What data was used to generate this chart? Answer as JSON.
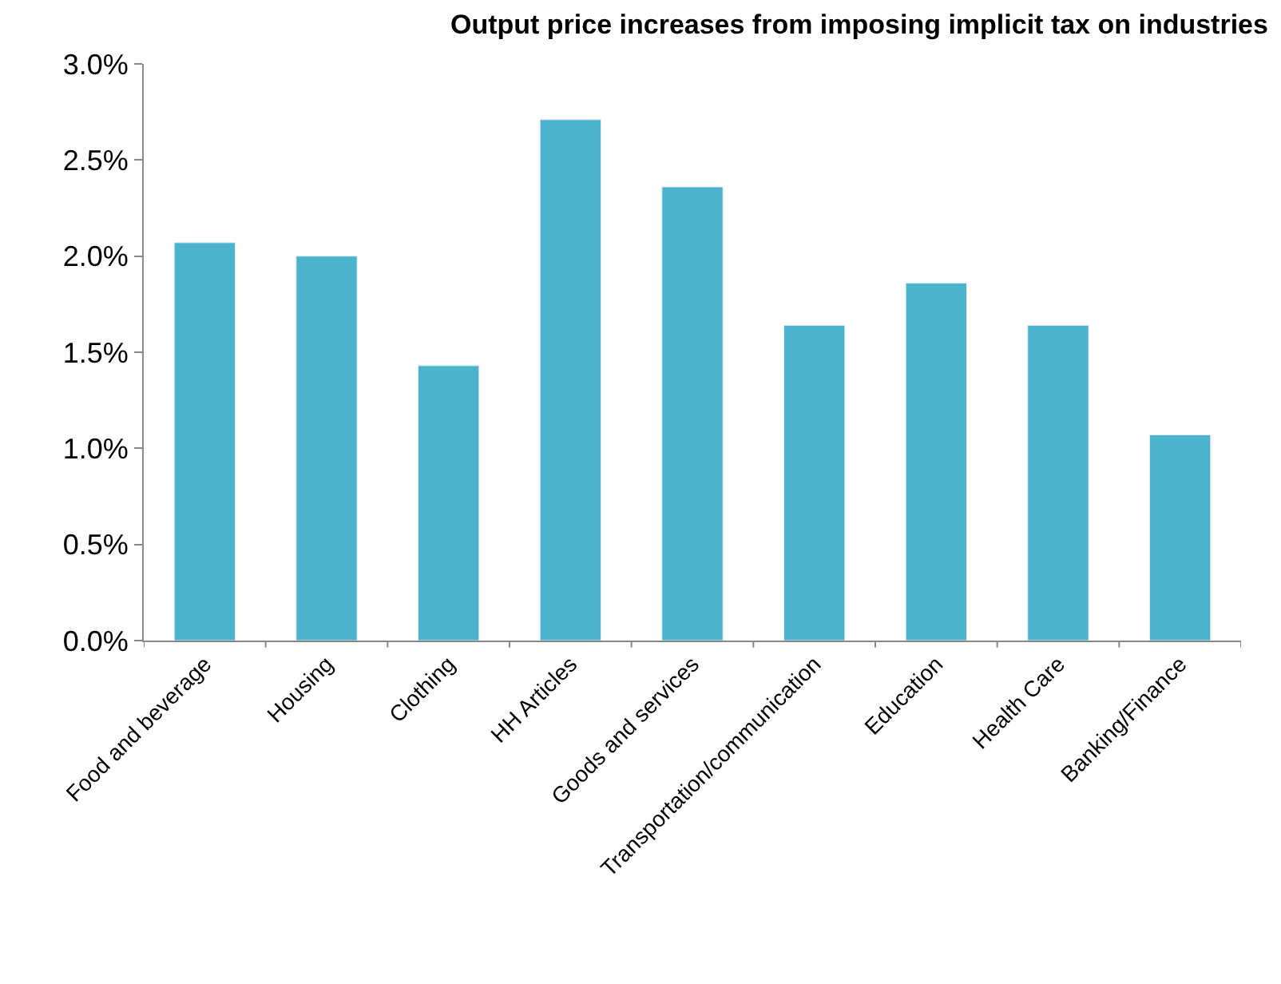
{
  "chart_data": {
    "type": "bar",
    "title": "Output price increases from imposing implicit tax on industries",
    "categories": [
      "Food and beverage",
      "Housing",
      "Clothing",
      "HH Articles",
      "Goods and services",
      "Transportation/communication",
      "Education",
      "Health Care",
      "Banking/Finance"
    ],
    "values": [
      2.07,
      2.0,
      1.43,
      2.71,
      2.36,
      1.64,
      1.86,
      1.64,
      1.07
    ],
    "color": "#4bb3cc",
    "ylim": [
      0,
      3
    ],
    "yticks": [
      {
        "value": 0,
        "label": "0.0%"
      },
      {
        "value": 0.5,
        "label": "0.5%"
      },
      {
        "value": 1,
        "label": "1.0%"
      },
      {
        "value": 1.5,
        "label": "1.5%"
      },
      {
        "value": 2,
        "label": "2.0%"
      },
      {
        "value": 2.5,
        "label": "2.5%"
      },
      {
        "value": 3,
        "label": "3.0%"
      }
    ]
  }
}
